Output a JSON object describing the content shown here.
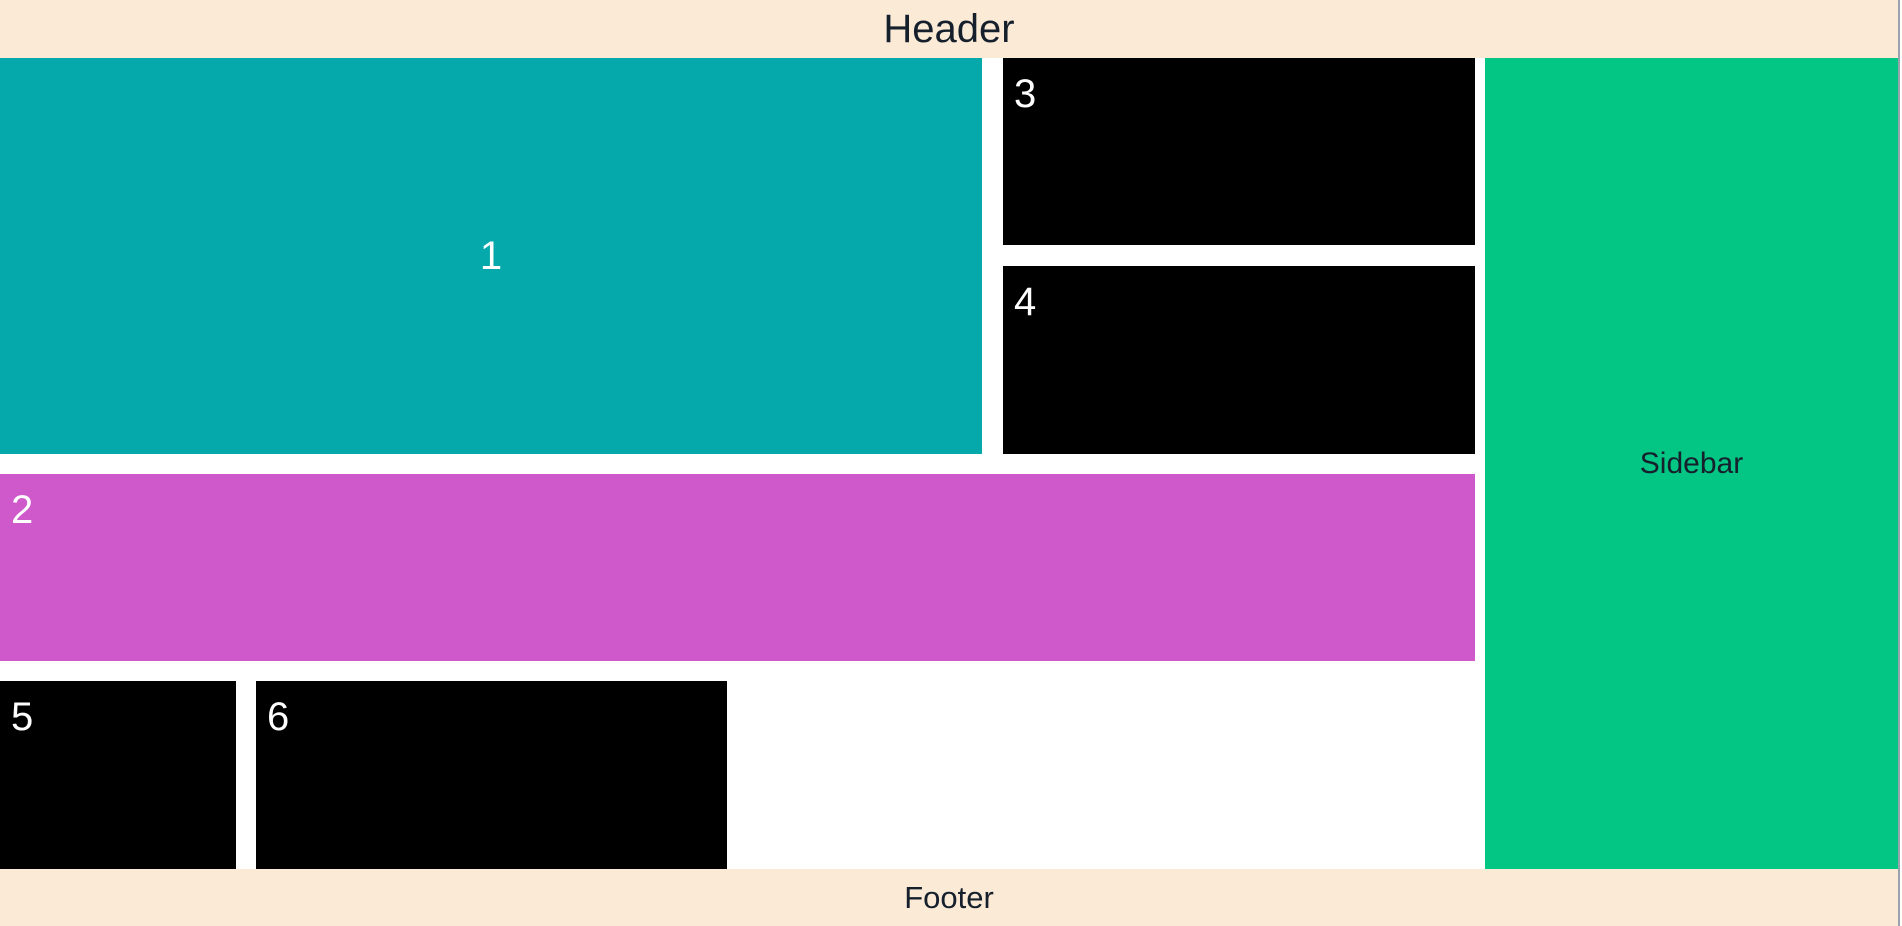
{
  "header": {
    "label": "Header"
  },
  "footer": {
    "label": "Footer"
  },
  "sidebar": {
    "label": "Sidebar"
  },
  "boxes": [
    {
      "label": "1",
      "color": "#05a9ab"
    },
    {
      "label": "2",
      "color": "#cf58cb"
    },
    {
      "label": "3",
      "color": "#000000"
    },
    {
      "label": "4",
      "color": "#000000"
    },
    {
      "label": "5",
      "color": "#000000"
    },
    {
      "label": "6",
      "color": "#000000"
    }
  ],
  "colors": {
    "header_footer_bg": "#fbead6",
    "sidebar_bg": "#04c684",
    "text_dark": "#16202c",
    "text_light": "#ffffff"
  }
}
